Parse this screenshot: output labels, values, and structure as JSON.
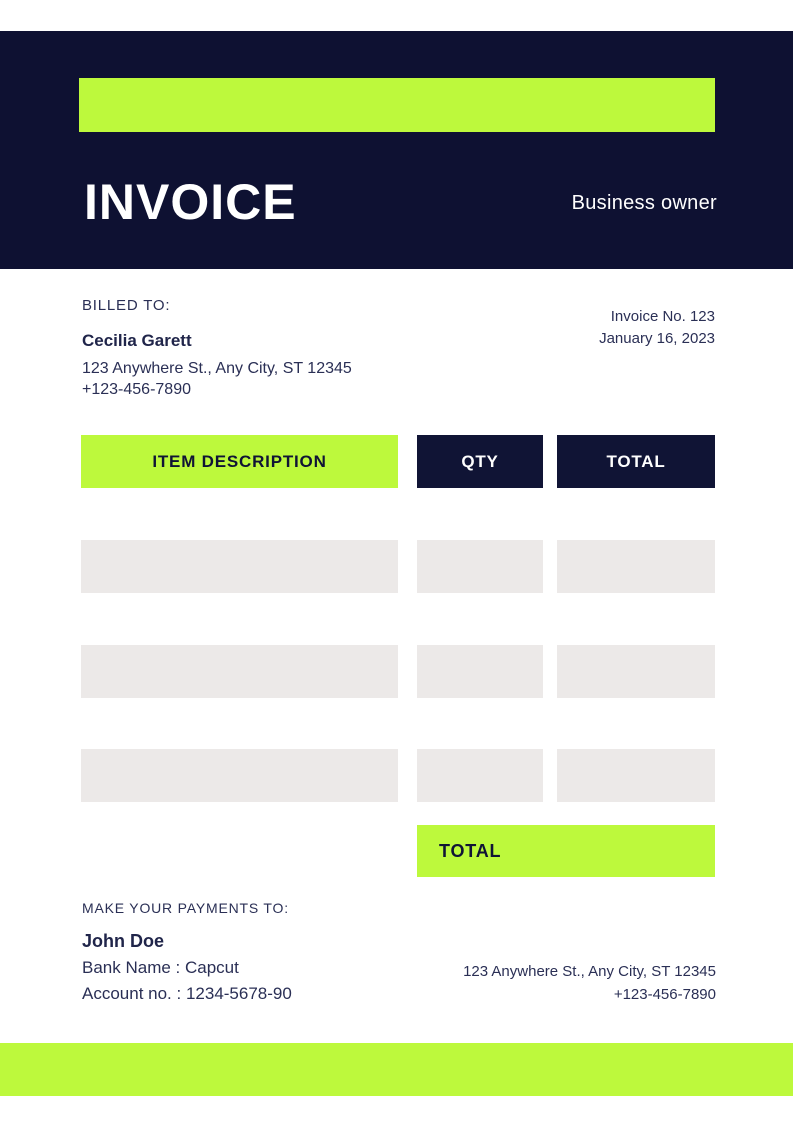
{
  "colors": {
    "navy": "#0e1132",
    "lime": "#bdf93c",
    "row_gray": "#ece9e8",
    "text_navy": "#2a2f55",
    "white": "#ffffff"
  },
  "header": {
    "title": "INVOICE",
    "tagline": "Business owner"
  },
  "billed_to": {
    "label": "BILLED TO:",
    "name": "Cecilia Garett",
    "address": "123 Anywhere St., Any City, ST 12345",
    "phone": "+123-456-7890"
  },
  "invoice_meta": {
    "number": "Invoice No. 123",
    "date": "January 16, 2023"
  },
  "table": {
    "headers": [
      "ITEM DESCRIPTION",
      "QTY",
      "TOTAL"
    ],
    "placeholder_row_count": 3,
    "rows": [
      [
        "",
        "",
        ""
      ],
      [
        "",
        "",
        ""
      ],
      [
        "",
        "",
        ""
      ]
    ],
    "total_label": "TOTAL"
  },
  "payment": {
    "label": "MAKE YOUR PAYMENTS TO:",
    "payee": "John Doe",
    "bank": "Bank Name : Capcut",
    "account": "Account no. : 1234-5678-90"
  },
  "footer_contact": {
    "address": "123 Anywhere St., Any City, ST 12345",
    "phone": "+123-456-7890"
  }
}
